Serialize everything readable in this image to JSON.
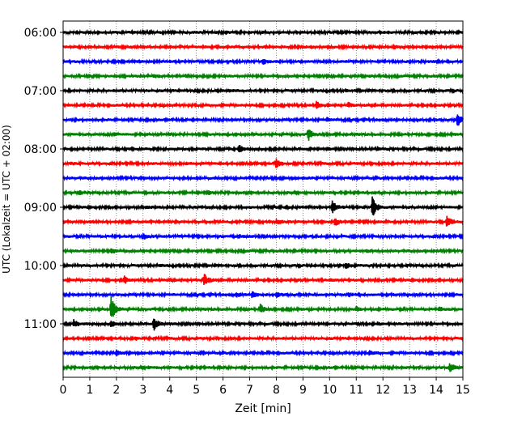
{
  "chart_data": {
    "type": "line",
    "title": "",
    "xlabel": "Zeit  [min]",
    "ylabel": "UTC (Lokalzeit = UTC + 02:00)",
    "xlim": [
      0,
      15
    ],
    "x_ticks": [
      "0",
      "1",
      "2",
      "3",
      "4",
      "5",
      "6",
      "7",
      "8",
      "9",
      "10",
      "11",
      "12",
      "13",
      "14",
      "15"
    ],
    "y_ticks": [
      "06:00",
      "07:00",
      "08:00",
      "09:00",
      "10:00",
      "11:00"
    ],
    "grid": "vertical-dotted",
    "trace_colors": [
      "#000000",
      "#ff0000",
      "#0000ff",
      "#008000"
    ],
    "traces": [
      {
        "start": "06:00",
        "color": "#000000",
        "events": [
          [
            6.1,
            0.12
          ],
          [
            12.2,
            0.06
          ]
        ]
      },
      {
        "start": "06:15",
        "color": "#ff0000",
        "events": [
          [
            9.3,
            0.1
          ],
          [
            12.4,
            0.12
          ]
        ]
      },
      {
        "start": "06:30",
        "color": "#0000ff",
        "events": [
          [
            7.5,
            0.22
          ],
          [
            4.0,
            0.08
          ]
        ]
      },
      {
        "start": "06:45",
        "color": "#008000",
        "events": [
          [
            3.4,
            0.1
          ],
          [
            4.6,
            0.08
          ],
          [
            11.5,
            0.08
          ]
        ]
      },
      {
        "start": "07:00",
        "color": "#000000",
        "events": [
          [
            6.2,
            0.1
          ],
          [
            10.6,
            0.08
          ]
        ]
      },
      {
        "start": "07:15",
        "color": "#ff0000",
        "events": [
          [
            9.5,
            0.3
          ],
          [
            10.7,
            0.2
          ]
        ]
      },
      {
        "start": "07:30",
        "color": "#0000ff",
        "events": [
          [
            9.9,
            0.12
          ],
          [
            14.8,
            0.7
          ]
        ]
      },
      {
        "start": "07:45",
        "color": "#008000",
        "events": [
          [
            1.9,
            0.12
          ],
          [
            9.2,
            0.6
          ]
        ]
      },
      {
        "start": "08:00",
        "color": "#000000",
        "events": [
          [
            6.6,
            0.35
          ],
          [
            11.8,
            0.12
          ],
          [
            9.9,
            0.08
          ]
        ]
      },
      {
        "start": "08:15",
        "color": "#ff0000",
        "events": [
          [
            0.3,
            0.1
          ],
          [
            8.0,
            0.4
          ],
          [
            4.6,
            0.08
          ]
        ]
      },
      {
        "start": "08:30",
        "color": "#0000ff",
        "events": [
          [
            9.0,
            0.08
          ]
        ]
      },
      {
        "start": "08:45",
        "color": "#008000",
        "events": [
          [
            0.6,
            0.2
          ],
          [
            5.4,
            0.22
          ],
          [
            11.6,
            0.08
          ]
        ]
      },
      {
        "start": "09:00",
        "color": "#000000",
        "events": [
          [
            10.1,
            0.6
          ],
          [
            11.6,
            1.0
          ],
          [
            3.1,
            0.1
          ]
        ]
      },
      {
        "start": "09:15",
        "color": "#ff0000",
        "events": [
          [
            8.0,
            0.2
          ],
          [
            10.2,
            0.35
          ],
          [
            14.4,
            0.6
          ],
          [
            1.0,
            0.08
          ]
        ]
      },
      {
        "start": "09:30",
        "color": "#0000ff",
        "events": [
          [
            3.0,
            0.3
          ],
          [
            6.6,
            0.12
          ]
        ]
      },
      {
        "start": "09:45",
        "color": "#008000",
        "events": [
          [
            1.8,
            0.2
          ],
          [
            11.4,
            0.08
          ]
        ]
      },
      {
        "start": "10:00",
        "color": "#000000",
        "events": [
          [
            10.6,
            0.3
          ],
          [
            3.6,
            0.08
          ]
        ]
      },
      {
        "start": "10:15",
        "color": "#ff0000",
        "events": [
          [
            2.3,
            0.35
          ],
          [
            5.3,
            0.55
          ],
          [
            10.0,
            0.1
          ]
        ]
      },
      {
        "start": "10:30",
        "color": "#0000ff",
        "events": [
          [
            7.1,
            0.3
          ],
          [
            8.0,
            0.25
          ],
          [
            6.5,
            0.2
          ],
          [
            10.7,
            0.15
          ]
        ]
      },
      {
        "start": "10:45",
        "color": "#008000",
        "events": [
          [
            1.8,
            1.2
          ],
          [
            7.4,
            0.4
          ],
          [
            11.0,
            0.2
          ],
          [
            14.1,
            0.2
          ]
        ]
      },
      {
        "start": "11:00",
        "color": "#000000",
        "events": [
          [
            0.4,
            0.3
          ],
          [
            1.8,
            0.3
          ],
          [
            3.4,
            0.65
          ],
          [
            11.8,
            0.12
          ]
        ]
      },
      {
        "start": "11:15",
        "color": "#ff0000",
        "events": [
          [
            2.7,
            0.12
          ]
        ]
      },
      {
        "start": "11:30",
        "color": "#0000ff",
        "events": [
          [
            2.0,
            0.25
          ],
          [
            11.5,
            0.2
          ]
        ]
      },
      {
        "start": "11:45",
        "color": "#008000",
        "events": [
          [
            14.5,
            0.45
          ],
          [
            3.2,
            0.1
          ]
        ]
      }
    ]
  }
}
